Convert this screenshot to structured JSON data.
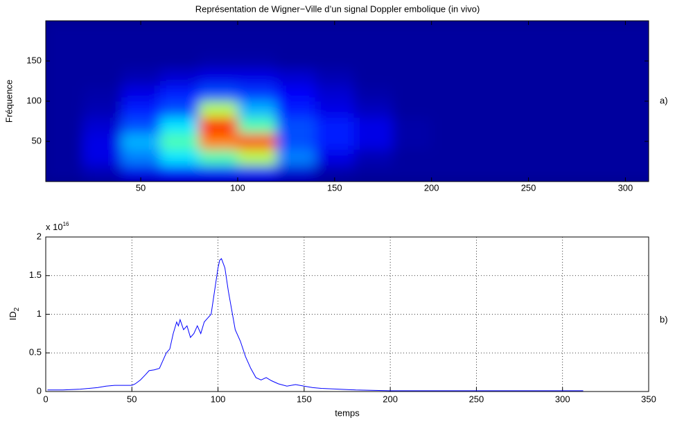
{
  "chart_data": [
    {
      "type": "heatmap",
      "title": "Représentation de Wigner−Ville d’un signal Doppler embolique (in vivo)",
      "ylabel": "Fréquence",
      "annotation": "a)",
      "colormap": "jet",
      "x": [
        10,
        30,
        50,
        70,
        90,
        110,
        130,
        150,
        170,
        190,
        210,
        230,
        250,
        270,
        290,
        310
      ],
      "y": [
        10,
        30,
        50,
        70,
        90,
        110,
        130,
        150,
        170,
        190
      ],
      "z": [
        [
          0.03,
          0.05,
          0.1,
          0.12,
          0.12,
          0.12,
          0.08,
          0.04,
          0.03,
          0.03,
          0.03,
          0.03,
          0.03,
          0.03,
          0.03,
          0.03
        ],
        [
          0.03,
          0.1,
          0.25,
          0.35,
          0.45,
          0.55,
          0.25,
          0.1,
          0.05,
          0.03,
          0.03,
          0.03,
          0.03,
          0.03,
          0.03,
          0.03
        ],
        [
          0.03,
          0.1,
          0.3,
          0.45,
          0.75,
          0.8,
          0.2,
          0.15,
          0.1,
          0.04,
          0.03,
          0.03,
          0.03,
          0.03,
          0.03,
          0.03
        ],
        [
          0.03,
          0.08,
          0.2,
          0.35,
          0.85,
          0.45,
          0.2,
          0.15,
          0.1,
          0.04,
          0.03,
          0.03,
          0.03,
          0.03,
          0.03,
          0.03
        ],
        [
          0.03,
          0.05,
          0.15,
          0.2,
          0.55,
          0.3,
          0.15,
          0.1,
          0.06,
          0.03,
          0.03,
          0.03,
          0.03,
          0.03,
          0.03,
          0.03
        ],
        [
          0.03,
          0.04,
          0.1,
          0.15,
          0.2,
          0.18,
          0.12,
          0.08,
          0.04,
          0.03,
          0.03,
          0.03,
          0.03,
          0.03,
          0.03,
          0.03
        ],
        [
          0.03,
          0.03,
          0.05,
          0.08,
          0.1,
          0.1,
          0.08,
          0.05,
          0.03,
          0.03,
          0.03,
          0.03,
          0.03,
          0.03,
          0.03,
          0.03
        ],
        [
          0.03,
          0.03,
          0.03,
          0.03,
          0.04,
          0.04,
          0.03,
          0.03,
          0.03,
          0.03,
          0.03,
          0.03,
          0.03,
          0.03,
          0.03,
          0.03
        ],
        [
          0.03,
          0.03,
          0.03,
          0.03,
          0.03,
          0.03,
          0.03,
          0.03,
          0.03,
          0.03,
          0.03,
          0.03,
          0.03,
          0.03,
          0.03,
          0.03
        ],
        [
          0.03,
          0.03,
          0.03,
          0.03,
          0.03,
          0.03,
          0.03,
          0.03,
          0.03,
          0.03,
          0.03,
          0.03,
          0.03,
          0.03,
          0.03,
          0.03
        ]
      ],
      "xlim": [
        1,
        312
      ],
      "ylim": [
        0,
        200
      ],
      "xticks": [
        50,
        100,
        150,
        200,
        250,
        300
      ],
      "yticks": [
        50,
        100,
        150
      ]
    },
    {
      "type": "line",
      "xlabel": "temps",
      "ylabel": "ID",
      "ylabel_sub": "2",
      "y_multiplier": "x 10",
      "y_multiplier_exp": "16",
      "annotation": "b)",
      "color": "#0000ff",
      "grid": true,
      "x": [
        1,
        10,
        20,
        30,
        35,
        40,
        45,
        50,
        52,
        55,
        58,
        60,
        63,
        66,
        68,
        70,
        72,
        74,
        76,
        77,
        78,
        80,
        82,
        84,
        86,
        88,
        90,
        92,
        94,
        96,
        98,
        100,
        101,
        102,
        104,
        106,
        108,
        110,
        113,
        116,
        119,
        122,
        125,
        128,
        131,
        135,
        140,
        145,
        150,
        155,
        160,
        170,
        180,
        200,
        220,
        250,
        280,
        312
      ],
      "values": [
        0.02,
        0.02,
        0.03,
        0.05,
        0.07,
        0.08,
        0.08,
        0.08,
        0.1,
        0.15,
        0.22,
        0.27,
        0.28,
        0.3,
        0.4,
        0.5,
        0.55,
        0.75,
        0.9,
        0.85,
        0.93,
        0.8,
        0.85,
        0.7,
        0.75,
        0.85,
        0.75,
        0.9,
        0.95,
        1.0,
        1.3,
        1.6,
        1.7,
        1.72,
        1.6,
        1.3,
        1.05,
        0.8,
        0.65,
        0.45,
        0.3,
        0.18,
        0.15,
        0.18,
        0.14,
        0.1,
        0.07,
        0.09,
        0.07,
        0.05,
        0.04,
        0.03,
        0.02,
        0.01,
        0.01,
        0.01,
        0.01,
        0.01
      ],
      "xlim": [
        0,
        350
      ],
      "ylim": [
        0,
        2
      ],
      "xticks": [
        0,
        50,
        100,
        150,
        200,
        250,
        300,
        350
      ],
      "yticks": [
        0,
        0.5,
        1,
        1.5,
        2
      ]
    }
  ]
}
